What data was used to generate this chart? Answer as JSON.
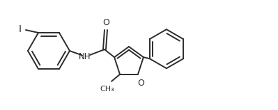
{
  "bg_color": "#ffffff",
  "line_color": "#2b2b2b",
  "line_width": 1.4,
  "figsize": [
    3.99,
    1.58
  ],
  "dpi": 100,
  "xlim": [
    0,
    3.99
  ],
  "ylim": [
    0,
    1.58
  ]
}
